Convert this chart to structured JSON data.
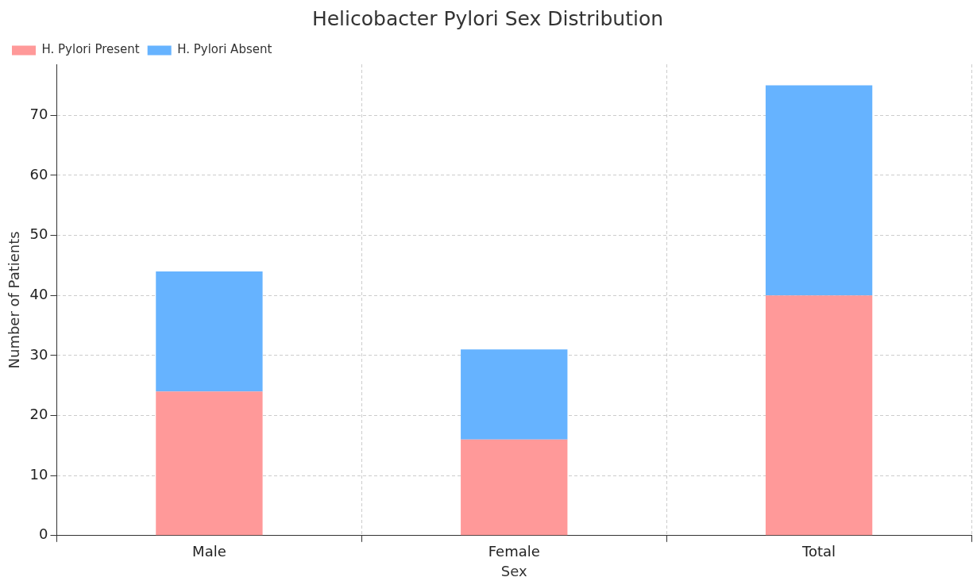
{
  "chart_data": {
    "type": "bar",
    "title": "Helicobacter Pylori Sex Distribution",
    "xlabel": "Sex",
    "ylabel": "Number of Patients",
    "categories": [
      "Male",
      "Female",
      "Total"
    ],
    "stacked": true,
    "series": [
      {
        "name": "H. Pylori Present",
        "color": "#ff9999",
        "values": [
          24,
          16,
          40
        ]
      },
      {
        "name": "H. Pylori Absent",
        "color": "#66b3ff",
        "values": [
          20,
          15,
          35
        ]
      }
    ],
    "ylim": [
      0,
      78.5
    ],
    "yticks": [
      0,
      10,
      20,
      30,
      40,
      50,
      60,
      70
    ],
    "grid": true,
    "legend": "top left"
  }
}
